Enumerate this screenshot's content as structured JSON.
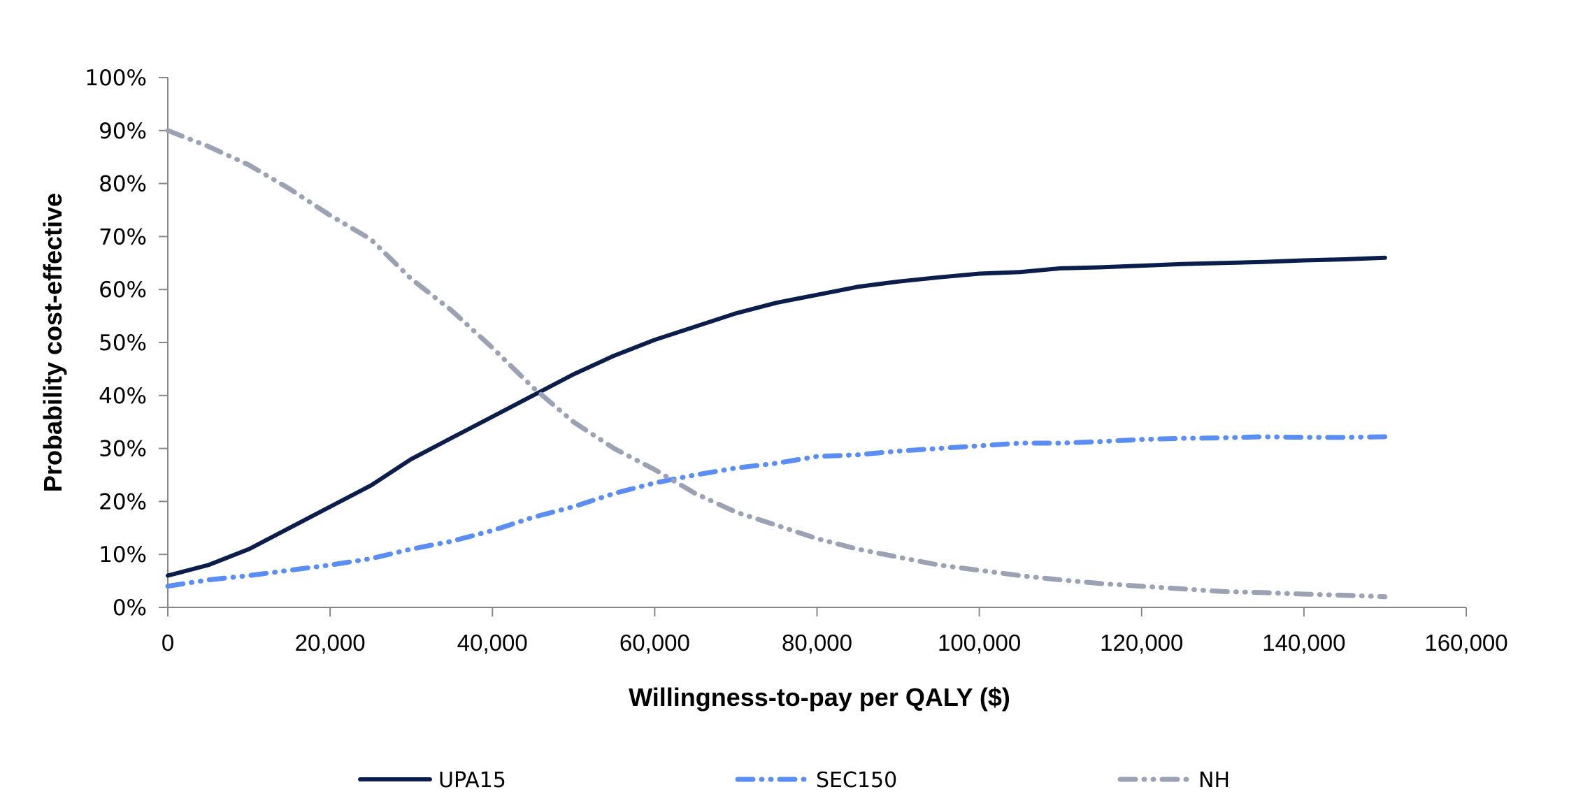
{
  "chart_data": {
    "type": "line",
    "title": "",
    "xlabel": "Willingness-to-pay per QALY ($)",
    "ylabel": "Probability cost-effective",
    "xlim": [
      0,
      160000
    ],
    "ylim": [
      0,
      100
    ],
    "x_ticks": [
      "0",
      "20,000",
      "40,000",
      "60,000",
      "80,000",
      "100,000",
      "120,000",
      "140,000",
      "160,000"
    ],
    "x_tick_values": [
      0,
      20000,
      40000,
      60000,
      80000,
      100000,
      120000,
      140000,
      160000
    ],
    "y_ticks": [
      "0%",
      "10%",
      "20%",
      "30%",
      "40%",
      "50%",
      "60%",
      "70%",
      "80%",
      "90%",
      "100%"
    ],
    "y_tick_values": [
      0,
      10,
      20,
      30,
      40,
      50,
      60,
      70,
      80,
      90,
      100
    ],
    "grid": false,
    "legend_position": "bottom",
    "x": [
      0,
      5000,
      10000,
      15000,
      20000,
      25000,
      30000,
      35000,
      40000,
      45000,
      50000,
      55000,
      60000,
      65000,
      70000,
      75000,
      80000,
      85000,
      90000,
      95000,
      100000,
      105000,
      110000,
      115000,
      120000,
      125000,
      130000,
      135000,
      140000,
      145000,
      150000
    ],
    "series": [
      {
        "name": "UPA15",
        "color": "#0b1d4b",
        "style": "solid",
        "values": [
          6,
          8,
          11,
          15,
          19,
          23,
          28,
          32,
          36,
          40,
          44,
          47.5,
          50.5,
          53,
          55.5,
          57.5,
          59,
          60.5,
          61.5,
          62.3,
          63,
          63.3,
          64,
          64.2,
          64.5,
          64.8,
          65,
          65.2,
          65.5,
          65.7,
          66
        ]
      },
      {
        "name": "SEC150",
        "color": "#5b8ef5",
        "style": "dash-dot-dot",
        "values": [
          4,
          5.2,
          6,
          7,
          8,
          9.2,
          11,
          12.5,
          14.5,
          17,
          19,
          21.5,
          23.5,
          25,
          26.3,
          27.2,
          28.5,
          28.8,
          29.5,
          30,
          30.5,
          31,
          31,
          31.3,
          31.7,
          31.9,
          32,
          32.2,
          32.1,
          32.1,
          32.2
        ]
      },
      {
        "name": "NH",
        "color": "#9aa2b4",
        "style": "dash-dot-dot",
        "values": [
          90,
          87,
          83.5,
          79,
          74,
          69.5,
          62,
          56,
          49,
          41.5,
          35,
          30,
          26,
          21.5,
          18,
          15.5,
          13,
          11,
          9.5,
          8,
          7,
          6,
          5.2,
          4.5,
          4,
          3.5,
          3,
          2.8,
          2.5,
          2.3,
          2
        ]
      }
    ]
  }
}
